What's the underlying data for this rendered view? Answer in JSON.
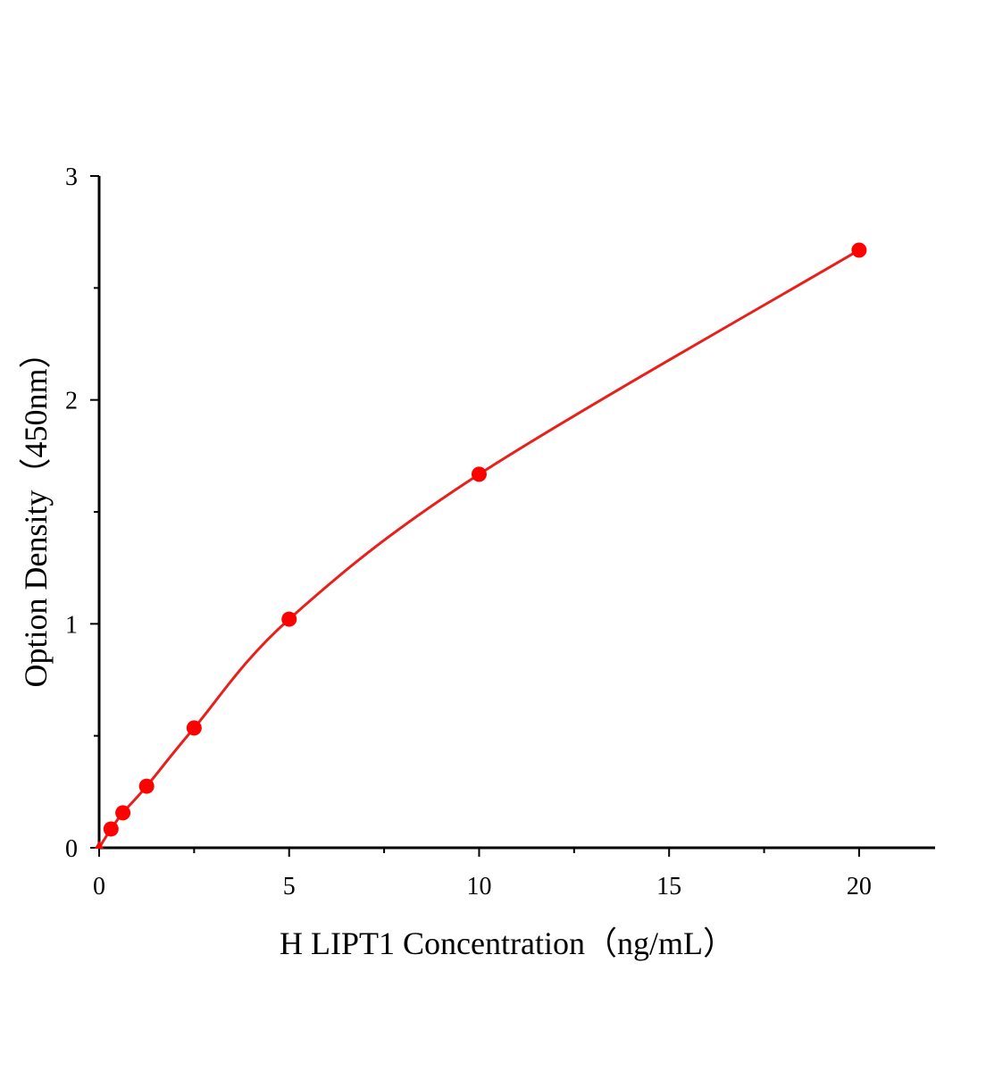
{
  "chart_data": {
    "type": "scatter",
    "title": "",
    "xlabel": "H LIPT1 Concentration（ng/mL）",
    "ylabel": "Option Density（450nm）",
    "xlim": [
      0,
      22
    ],
    "ylim": [
      0,
      3
    ],
    "x_ticks": [
      "0",
      "5",
      "10",
      "15",
      "20"
    ],
    "y_ticks": [
      "0",
      "1",
      "2",
      "3"
    ],
    "grid": false,
    "series": [
      {
        "x": [
          0,
          0.3125,
          0.625,
          1.25,
          2.5,
          5,
          10,
          20
        ],
        "y": [
          0.0,
          0.084,
          0.156,
          0.275,
          0.535,
          1.021,
          1.668,
          2.669
        ],
        "color": "#ff0000",
        "fit_curve": true
      }
    ]
  }
}
